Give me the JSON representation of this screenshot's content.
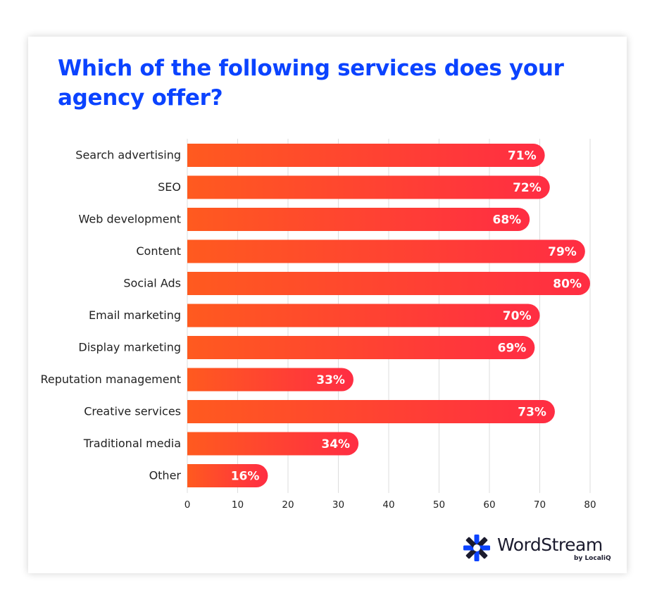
{
  "chart_data": {
    "type": "bar",
    "orientation": "horizontal",
    "title": "Which of the following services does your agency offer?",
    "categories": [
      "Search advertising",
      "SEO",
      "Web development",
      "Content",
      "Social Ads",
      "Email marketing",
      "Display marketing",
      "Reputation management",
      "Creative services",
      "Traditional media",
      "Other"
    ],
    "values": [
      71,
      72,
      68,
      79,
      80,
      70,
      69,
      33,
      73,
      34,
      16
    ],
    "value_labels": [
      "71%",
      "72%",
      "68%",
      "79%",
      "80%",
      "70%",
      "69%",
      "33%",
      "73%",
      "34%",
      "16%"
    ],
    "xlim": [
      0,
      80
    ],
    "xticks": [
      0,
      10,
      20,
      30,
      40,
      50,
      60,
      70,
      80
    ],
    "grid": "vertical",
    "colors": {
      "bar_start": "#ff5a1f",
      "bar_end": "#ff2d43",
      "title": "#0b43ff"
    }
  },
  "logo": {
    "name": "WordStream",
    "byline": "by LocaliQ",
    "icon": "wordstream-asterisk-icon",
    "colors": {
      "blue": "#0b43ff",
      "navy": "#1b1b2e"
    }
  }
}
